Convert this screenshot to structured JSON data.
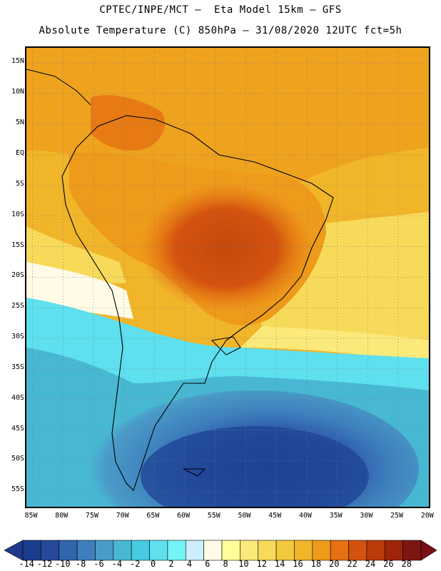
{
  "titles": {
    "line1": "CPTEC/INPE/MCT –  Eta Model 15km – GFS",
    "line2": "Absolute Temperature (C) 850hPa – 31/08/2020 12UTC fct=5h"
  },
  "axes": {
    "lat_labels": [
      "15N",
      "10N",
      "5N",
      "EQ",
      "5S",
      "10S",
      "15S",
      "20S",
      "25S",
      "30S",
      "35S",
      "40S",
      "45S",
      "50S",
      "55S"
    ],
    "lat_values": [
      15,
      10,
      5,
      0,
      -5,
      -10,
      -15,
      -20,
      -25,
      -30,
      -35,
      -40,
      -45,
      -50,
      -55
    ],
    "lon_labels": [
      "85W",
      "80W",
      "75W",
      "70W",
      "65W",
      "60W",
      "55W",
      "50W",
      "45W",
      "40W",
      "35W",
      "30W",
      "25W",
      "20W"
    ],
    "lon_values": [
      -85,
      -80,
      -75,
      -70,
      -65,
      -60,
      -55,
      -50,
      -45,
      -40,
      -35,
      -30,
      -25,
      -20
    ],
    "lat_range": [
      -58,
      17.5
    ],
    "lon_range": [
      -86,
      -19.5
    ],
    "grid": "dotted"
  },
  "colorbar": {
    "labels": [
      "-14",
      "-12",
      "-10",
      "-8",
      "-6",
      "-4",
      "-2",
      "0",
      "2",
      "4",
      "6",
      "8",
      "10",
      "12",
      "14",
      "16",
      "18",
      "20",
      "22",
      "24",
      "26",
      "28"
    ],
    "colors": [
      "#1a3c8c",
      "#25499c",
      "#3165ad",
      "#3d7fbd",
      "#4a9cc8",
      "#48b8d2",
      "#46cbe3",
      "#5ee0ee",
      "#74f4f4",
      "#cceeff",
      "#fffbe6",
      "#ffff99",
      "#fbe97a",
      "#f8da5a",
      "#f3c93c",
      "#f1b52a",
      "#ee9a1a",
      "#e67012",
      "#d4520e",
      "#bb3a0a",
      "#9e2508",
      "#7b1610"
    ],
    "under_color": "#1e3a8a",
    "over_color": "#7a0d16"
  }
}
